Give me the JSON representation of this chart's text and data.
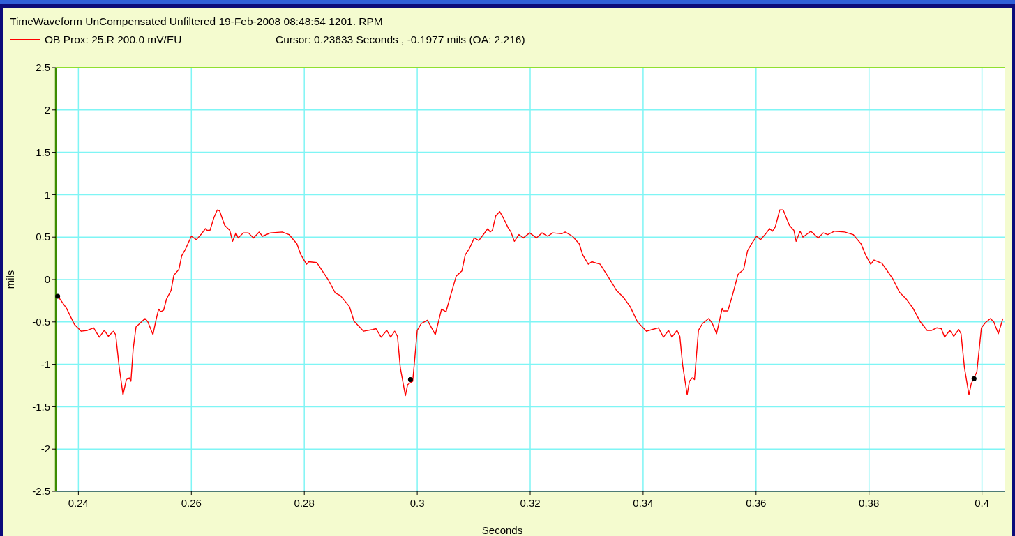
{
  "chart_data": {
    "type": "line",
    "title": "TimeWaveform   UnCompensated   Unfiltered   19-Feb-2008 08:48:54   1201. RPM",
    "xlabel": "Seconds",
    "ylabel": "mils",
    "annotations": [
      "Cursor: 0.23633  Seconds , -0.1977 mils   (OA: 2.216)"
    ],
    "xlim": [
      0.236,
      0.404
    ],
    "xticks": [
      0.24,
      0.26,
      0.28,
      0.3,
      0.32,
      0.34,
      0.36,
      0.38,
      0.4
    ],
    "ylim": [
      -2.5,
      2.5
    ],
    "yticks": [
      -2.5,
      -2,
      -1.5,
      -1,
      -0.5,
      0,
      0.5,
      1,
      1.5,
      2,
      2.5
    ],
    "grid": true,
    "legend": "top left",
    "line_style": "solid",
    "series": [
      {
        "name": "OB Prox:  25.R  200.0 mV/EU",
        "color": "#ff0000",
        "marker": "none",
        "x": [
          0.2363,
          0.2379,
          0.2393,
          0.2405,
          0.2416,
          0.2427,
          0.2437,
          0.2446,
          0.2453,
          0.2462,
          0.2466,
          0.2472,
          0.2479,
          0.2485,
          0.249,
          0.2493,
          0.2497,
          0.2502,
          0.251,
          0.2518,
          0.2523,
          0.2532,
          0.2537,
          0.2542,
          0.2546,
          0.2551,
          0.2556,
          0.2564,
          0.2569,
          0.2578,
          0.2583,
          0.2589,
          0.26,
          0.2609,
          0.2617,
          0.2625,
          0.2628,
          0.2633,
          0.264,
          0.2646,
          0.265,
          0.2659,
          0.2668,
          0.2673,
          0.2679,
          0.2683,
          0.2692,
          0.2701,
          0.271,
          0.272,
          0.2726,
          0.274,
          0.2761,
          0.2773,
          0.2787,
          0.2794,
          0.2804,
          0.2808,
          0.2822,
          0.2843,
          0.2855,
          0.2864,
          0.288,
          0.2888,
          0.2905,
          0.2921,
          0.2927,
          0.2936,
          0.2946,
          0.2953,
          0.296,
          0.2965,
          0.297,
          0.2979,
          0.2983,
          0.2992,
          0.2995,
          0.3,
          0.3007,
          0.3018,
          0.3032,
          0.3043,
          0.3051,
          0.3059,
          0.3069,
          0.3079,
          0.3085,
          0.3092,
          0.3101,
          0.3109,
          0.3116,
          0.3125,
          0.3129,
          0.3133,
          0.3139,
          0.3146,
          0.3153,
          0.3161,
          0.3166,
          0.3172,
          0.318,
          0.3188,
          0.3199,
          0.3211,
          0.3221,
          0.3231,
          0.324,
          0.3256,
          0.3262,
          0.3275,
          0.3287,
          0.3293,
          0.3303,
          0.3309,
          0.3324,
          0.3342,
          0.3353,
          0.3365,
          0.3377,
          0.339,
          0.3406,
          0.3416,
          0.3427,
          0.3436,
          0.3445,
          0.3451,
          0.346,
          0.3465,
          0.347,
          0.3478,
          0.3482,
          0.3487,
          0.3491,
          0.3494,
          0.3498,
          0.3505,
          0.3516,
          0.3522,
          0.353,
          0.354,
          0.3542,
          0.355,
          0.3558,
          0.3568,
          0.3578,
          0.3585,
          0.3593,
          0.3601,
          0.3608,
          0.3616,
          0.3624,
          0.3629,
          0.3634,
          0.3642,
          0.3648,
          0.3659,
          0.3667,
          0.3671,
          0.3678,
          0.3683,
          0.3697,
          0.371,
          0.3719,
          0.3727,
          0.3739,
          0.3757,
          0.3772,
          0.3786,
          0.3794,
          0.3803,
          0.3809,
          0.3823,
          0.3842,
          0.3854,
          0.3866,
          0.3878,
          0.3891,
          0.3903,
          0.3911,
          0.392,
          0.3928,
          0.3934,
          0.3943,
          0.395,
          0.3959,
          0.3963,
          0.3969,
          0.3977,
          0.3981,
          0.3991,
          0.3999,
          0.4006,
          0.4015,
          0.4021,
          0.4029,
          0.4037
        ],
        "values": [
          -0.19,
          -0.34,
          -0.53,
          -0.61,
          -0.6,
          -0.57,
          -0.68,
          -0.6,
          -0.67,
          -0.61,
          -0.65,
          -1.02,
          -1.36,
          -1.18,
          -1.16,
          -1.2,
          -0.82,
          -0.56,
          -0.51,
          -0.46,
          -0.5,
          -0.65,
          -0.49,
          -0.35,
          -0.38,
          -0.36,
          -0.23,
          -0.13,
          0.05,
          0.12,
          0.28,
          0.35,
          0.51,
          0.47,
          0.53,
          0.6,
          0.58,
          0.58,
          0.73,
          0.82,
          0.81,
          0.64,
          0.58,
          0.45,
          0.55,
          0.49,
          0.55,
          0.55,
          0.49,
          0.56,
          0.51,
          0.55,
          0.56,
          0.53,
          0.42,
          0.29,
          0.18,
          0.21,
          0.2,
          -0.01,
          -0.16,
          -0.19,
          -0.32,
          -0.49,
          -0.61,
          -0.59,
          -0.58,
          -0.68,
          -0.6,
          -0.68,
          -0.61,
          -0.67,
          -1.04,
          -1.37,
          -1.24,
          -1.2,
          -0.98,
          -0.6,
          -0.52,
          -0.48,
          -0.65,
          -0.35,
          -0.38,
          -0.19,
          0.04,
          0.1,
          0.29,
          0.36,
          0.49,
          0.46,
          0.52,
          0.6,
          0.56,
          0.58,
          0.75,
          0.8,
          0.72,
          0.61,
          0.56,
          0.45,
          0.53,
          0.49,
          0.55,
          0.49,
          0.55,
          0.51,
          0.55,
          0.54,
          0.56,
          0.51,
          0.42,
          0.29,
          0.18,
          0.21,
          0.18,
          -0.01,
          -0.13,
          -0.21,
          -0.32,
          -0.5,
          -0.61,
          -0.59,
          -0.57,
          -0.68,
          -0.6,
          -0.68,
          -0.6,
          -0.67,
          -1.01,
          -1.36,
          -1.2,
          -1.16,
          -1.18,
          -0.93,
          -0.6,
          -0.52,
          -0.46,
          -0.51,
          -0.64,
          -0.34,
          -0.37,
          -0.37,
          -0.19,
          0.06,
          0.12,
          0.34,
          0.43,
          0.51,
          0.47,
          0.53,
          0.6,
          0.57,
          0.62,
          0.82,
          0.82,
          0.64,
          0.58,
          0.45,
          0.57,
          0.5,
          0.57,
          0.49,
          0.55,
          0.53,
          0.57,
          0.56,
          0.53,
          0.42,
          0.29,
          0.18,
          0.23,
          0.19,
          0.01,
          -0.15,
          -0.23,
          -0.34,
          -0.5,
          -0.6,
          -0.6,
          -0.57,
          -0.58,
          -0.68,
          -0.6,
          -0.67,
          -0.59,
          -0.64,
          -1.04,
          -1.36,
          -1.23,
          -1.09,
          -0.57,
          -0.51,
          -0.46,
          -0.5,
          -0.64,
          -0.46
        ]
      },
      {
        "type": "scatter",
        "color": "#000000",
        "marker": "circle",
        "x": [
          0.23633,
          0.2988,
          0.3986
        ],
        "values": [
          -0.1977,
          -1.18,
          -1.17
        ]
      }
    ]
  }
}
